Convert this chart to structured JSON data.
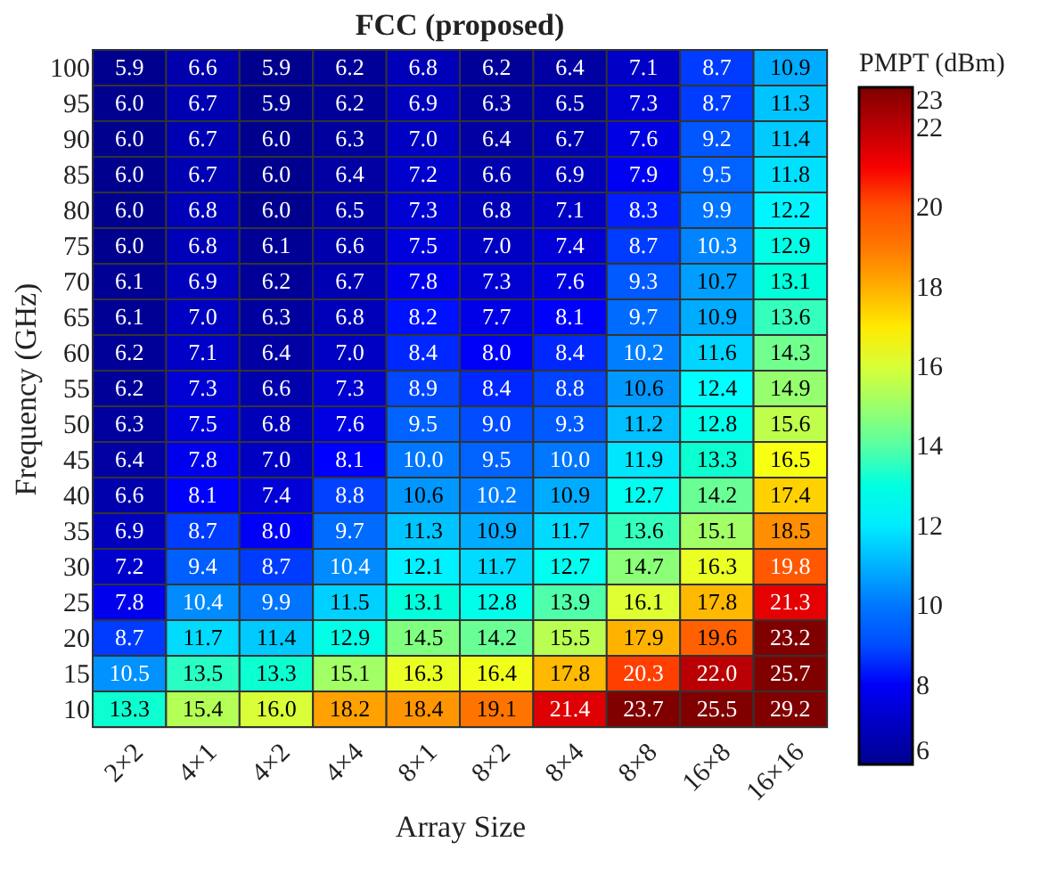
{
  "chart_data": {
    "type": "heatmap",
    "title": "FCC (proposed)",
    "xlabel": "Array Size",
    "ylabel": "Frequency (GHz)",
    "clabel": "PMPT (dBm)",
    "categories": [
      "2×2",
      "4×1",
      "4×2",
      "4×4",
      "8×1",
      "8×2",
      "8×4",
      "8×8",
      "16×8",
      "16×16"
    ],
    "y_categories": [
      "100",
      "95",
      "90",
      "85",
      "80",
      "75",
      "70",
      "65",
      "60",
      "55",
      "50",
      "45",
      "40",
      "35",
      "30",
      "25",
      "20",
      "15",
      "10"
    ],
    "cells": [
      [
        5.9,
        6.6,
        5.9,
        6.2,
        6.8,
        6.2,
        6.4,
        7.1,
        8.7,
        10.9
      ],
      [
        6.0,
        6.7,
        5.9,
        6.2,
        6.9,
        6.3,
        6.5,
        7.3,
        8.7,
        11.3
      ],
      [
        6.0,
        6.7,
        6.0,
        6.3,
        7.0,
        6.4,
        6.7,
        7.6,
        9.2,
        11.4
      ],
      [
        6.0,
        6.7,
        6.0,
        6.4,
        7.2,
        6.6,
        6.9,
        7.9,
        9.5,
        11.8
      ],
      [
        6.0,
        6.8,
        6.0,
        6.5,
        7.3,
        6.8,
        7.1,
        8.3,
        9.9,
        12.2
      ],
      [
        6.0,
        6.8,
        6.1,
        6.6,
        7.5,
        7.0,
        7.4,
        8.7,
        10.3,
        12.9
      ],
      [
        6.1,
        6.9,
        6.2,
        6.7,
        7.8,
        7.3,
        7.6,
        9.3,
        10.7,
        13.1
      ],
      [
        6.1,
        7.0,
        6.3,
        6.8,
        8.2,
        7.7,
        8.1,
        9.7,
        10.9,
        13.6
      ],
      [
        6.2,
        7.1,
        6.4,
        7.0,
        8.4,
        8.0,
        8.4,
        10.2,
        11.6,
        14.3
      ],
      [
        6.2,
        7.3,
        6.6,
        7.3,
        8.9,
        8.4,
        8.8,
        10.6,
        12.4,
        14.9
      ],
      [
        6.3,
        7.5,
        6.8,
        7.6,
        9.5,
        9.0,
        9.3,
        11.2,
        12.8,
        15.6
      ],
      [
        6.4,
        7.8,
        7.0,
        8.1,
        10.0,
        9.5,
        10.0,
        11.9,
        13.3,
        16.5
      ],
      [
        6.6,
        8.1,
        7.4,
        8.8,
        10.6,
        10.2,
        10.9,
        12.7,
        14.2,
        17.4
      ],
      [
        6.9,
        8.7,
        8.0,
        9.7,
        11.3,
        10.9,
        11.7,
        13.6,
        15.1,
        18.5
      ],
      [
        7.2,
        9.4,
        8.7,
        10.4,
        12.1,
        11.7,
        12.7,
        14.7,
        16.3,
        19.8
      ],
      [
        7.8,
        10.4,
        9.9,
        11.5,
        13.1,
        12.8,
        13.9,
        16.1,
        17.8,
        21.3
      ],
      [
        8.7,
        11.7,
        11.4,
        12.9,
        14.5,
        14.2,
        15.5,
        17.9,
        19.6,
        23.2
      ],
      [
        10.5,
        13.5,
        13.3,
        15.1,
        16.3,
        16.4,
        17.8,
        20.3,
        22.0,
        25.7
      ],
      [
        13.3,
        15.4,
        16.0,
        18.2,
        18.4,
        19.1,
        21.4,
        23.7,
        25.5,
        29.2
      ]
    ],
    "cell_labels": [
      [
        "5.9",
        "6.6",
        "5.9",
        "6.2",
        "6.8",
        "6.2",
        "6.4",
        "7.1",
        "8.7",
        "10.9"
      ],
      [
        "6.0",
        "6.7",
        "5.9",
        "6.2",
        "6.9",
        "6.3",
        "6.5",
        "7.3",
        "8.7",
        "11.3"
      ],
      [
        "6.0",
        "6.7",
        "6.0",
        "6.3",
        "7.0",
        "6.4",
        "6.7",
        "7.6",
        "9.2",
        "11.4"
      ],
      [
        "6.0",
        "6.7",
        "6.0",
        "6.4",
        "7.2",
        "6.6",
        "6.9",
        "7.9",
        "9.5",
        "11.8"
      ],
      [
        "6.0",
        "6.8",
        "6.0",
        "6.5",
        "7.3",
        "6.8",
        "7.1",
        "8.3",
        "9.9",
        "12.2"
      ],
      [
        "6.0",
        "6.8",
        "6.1",
        "6.6",
        "7.5",
        "7.0",
        "7.4",
        "8.7",
        "10.3",
        "12.9"
      ],
      [
        "6.1",
        "6.9",
        "6.2",
        "6.7",
        "7.8",
        "7.3",
        "7.6",
        "9.3",
        "10.7",
        "13.1"
      ],
      [
        "6.1",
        "7.0",
        "6.3",
        "6.8",
        "8.2",
        "7.7",
        "8.1",
        "9.7",
        "10.9",
        "13.6"
      ],
      [
        "6.2",
        "7.1",
        "6.4",
        "7.0",
        "8.4",
        "8.0",
        "8.4",
        "10.2",
        "11.6",
        "14.3"
      ],
      [
        "6.2",
        "7.3",
        "6.6",
        "7.3",
        "8.9",
        "8.4",
        "8.8",
        "10.6",
        "12.4",
        "14.9"
      ],
      [
        "6.3",
        "7.5",
        "6.8",
        "7.6",
        "9.5",
        "9.0",
        "9.3",
        "11.2",
        "12.8",
        "15.6"
      ],
      [
        "6.4",
        "7.8",
        "7.0",
        "8.1",
        "10.0",
        "9.5",
        "10.0",
        "11.9",
        "13.3",
        "16.5"
      ],
      [
        "6.6",
        "8.1",
        "7.4",
        "8.8",
        "10.6",
        "10.2",
        "10.9",
        "12.7",
        "14.2",
        "17.4"
      ],
      [
        "6.9",
        "8.7",
        "8.0",
        "9.7",
        "11.3",
        "10.9",
        "11.7",
        "13.6",
        "15.1",
        "18.5"
      ],
      [
        "7.2",
        "9.4",
        "8.7",
        "10.4",
        "12.1",
        "11.7",
        "12.7",
        "14.7",
        "16.3",
        "19.8"
      ],
      [
        "7.8",
        "10.4",
        "9.9",
        "11.5",
        "13.1",
        "12.8",
        "13.9",
        "16.1",
        "17.8",
        "21.3"
      ],
      [
        "8.7",
        "11.7",
        "11.4",
        "12.9",
        "14.5",
        "14.2",
        "15.5",
        "17.9",
        "19.6",
        "23.2"
      ],
      [
        "10.5",
        "13.5",
        "13.3",
        "15.1",
        "16.3",
        "16.4",
        "17.8",
        "20.3",
        "22.0",
        "25.7"
      ],
      [
        "13.3",
        "15.4",
        "16.0",
        "18.2",
        "18.4",
        "19.1",
        "21.4",
        "23.7",
        "25.5",
        "29.2"
      ]
    ],
    "clim": [
      6,
      23
    ],
    "cticks": [
      6,
      8,
      10,
      12,
      14,
      16,
      18,
      20,
      22,
      23
    ]
  }
}
